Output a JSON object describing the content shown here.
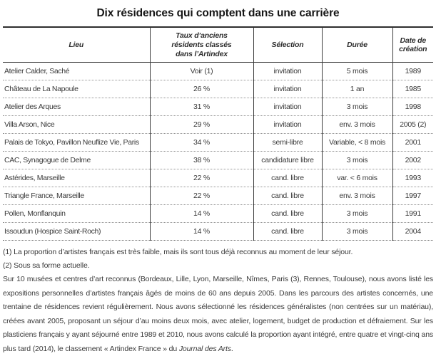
{
  "title": "Dix résidences qui comptent dans une carrière",
  "table": {
    "header": {
      "lieu": "Lieu",
      "taux_line1": "Taux d’anciens",
      "taux_line2": "résidents classés",
      "taux_line3": "dans l’Artindex",
      "selection": "Sélection",
      "duree": "Durée",
      "date": "Date de création"
    },
    "rows": [
      [
        "Atelier Calder, Saché",
        "Voir (1)",
        "invitation",
        "5 mois",
        "1989"
      ],
      [
        "Château de La Napoule",
        "26 %",
        "invitation",
        "1 an",
        "1985"
      ],
      [
        "Atelier des Arques",
        "31 %",
        "invitation",
        "3 mois",
        "1998"
      ],
      [
        "Villa Arson, Nice",
        "29 %",
        "invitation",
        "env. 3 mois",
        "2005 (2)"
      ],
      [
        "Palais de Tokyo, Pavillon Neuflize Vie, Paris",
        "34 %",
        "semi-libre",
        "Variable, < 8 mois",
        "2001"
      ],
      [
        "CAC, Synagogue de Delme",
        "38 %",
        "candidature libre",
        "3 mois",
        "2002"
      ],
      [
        "Astérides, Marseille",
        "22 %",
        "cand. libre",
        "var. < 6 mois",
        "1993"
      ],
      [
        "Triangle France, Marseille",
        "22 %",
        "cand. libre",
        "env. 3 mois",
        "1997"
      ],
      [
        "Pollen, Monflanquin",
        "14 %",
        "cand. libre",
        "3 mois",
        "1991"
      ],
      [
        "Issoudun (Hospice Saint-Roch)",
        "14 %",
        "cand. libre",
        "3 mois",
        "2004"
      ]
    ]
  },
  "footnotes": [
    "(1) La proportion d’artistes français est très faible, mais ils sont tous déjà reconnus au moment de leur séjour.",
    "(2) Sous sa forme actuelle."
  ],
  "paragraph": {
    "text": "Sur 10 musées et centres d’art reconnus (Bordeaux, Lille, Lyon, Marseille, Nîmes, Paris (3), Rennes, Toulouse), nous avons listé les expositions personnelles d’artistes français âgés de moins de 60 ans depuis 2005. Dans les parcours des artistes concernés, une trentaine de résidences revient régulièrement. Nous avons sélectionné les résidences généralistes (non centrées sur un matériau), créées avant 2005, proposant un séjour d’au moins deux mois, avec atelier, logement, budget de production et défraiement. Sur les plasticiens français y ayant séjourné entre 1989 et 2010, nous avons calculé la proportion ayant intégré, entre quatre et vingt-cinq ans plus tard (2014), le classement « Artindex France » du ",
    "italic_ref": "Journal des Arts",
    "after": "."
  }
}
